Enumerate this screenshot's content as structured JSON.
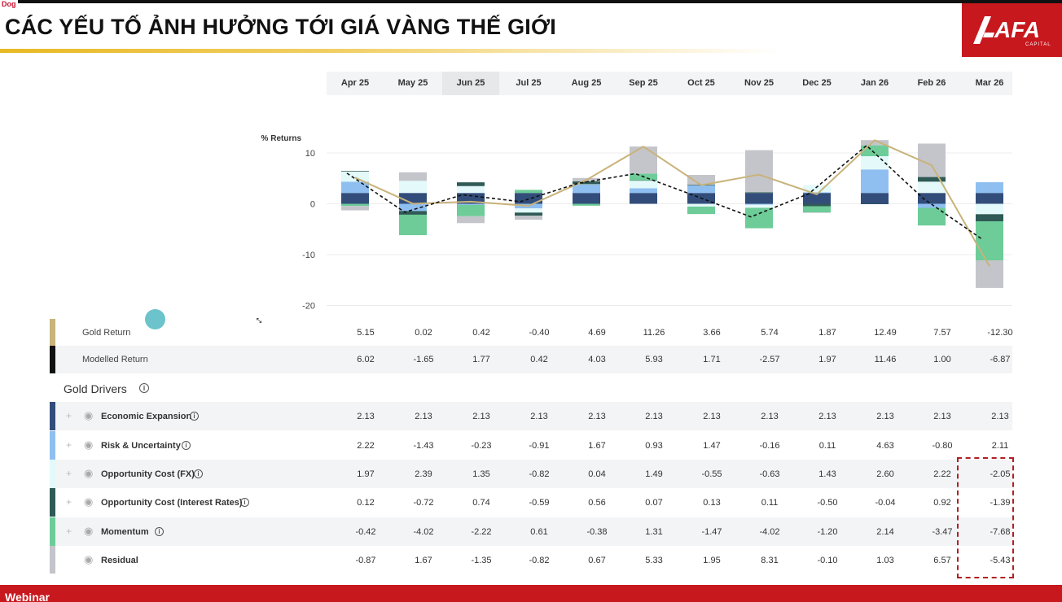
{
  "corner_tag": "Dog",
  "title": "CÁC YẾU TỐ ẢNH HƯỞNG TỚI GIÁ VÀNG THẾ GIỚI",
  "logo": {
    "text": "AFA",
    "sub": "CAPITAL"
  },
  "footer": "Webinar",
  "gold_drivers_heading": "Gold Drivers",
  "colors": {
    "economic_expansion": "#324d7a",
    "risk_uncertainty": "#8fbff0",
    "opportunity_cost_fx": "#e3f9fa",
    "opportunity_cost_rates": "#2f5a55",
    "momentum": "#6dcc98",
    "residual": "#c4c5cb",
    "gold_return": "#c8b37a",
    "modelled_return": "#111111",
    "brand_red": "#c7181d",
    "highlight": "#b21f24"
  },
  "chart_data": {
    "type": "bar",
    "stacked": true,
    "ylabel": "% Returns",
    "ylim": [
      -20,
      15
    ],
    "yticks": [
      10,
      0,
      -10,
      -20
    ],
    "categories": [
      "Apr 25",
      "May 25",
      "Jun 25",
      "Jul 25",
      "Aug 25",
      "Sep 25",
      "Oct 25",
      "Nov 25",
      "Dec 25",
      "Jan 26",
      "Feb 26",
      "Mar 26"
    ],
    "series": [
      {
        "name": "Economic Expansion",
        "values": [
          2.13,
          2.13,
          2.13,
          2.13,
          2.13,
          2.13,
          2.13,
          2.13,
          2.13,
          2.13,
          2.13,
          2.13
        ]
      },
      {
        "name": "Risk & Uncertainty",
        "values": [
          2.22,
          -1.43,
          -0.23,
          -0.91,
          1.67,
          0.93,
          1.47,
          -0.16,
          0.11,
          4.63,
          -0.8,
          2.11
        ]
      },
      {
        "name": "Opportunity Cost (FX)",
        "values": [
          1.97,
          2.39,
          1.35,
          -0.82,
          0.04,
          1.49,
          -0.55,
          -0.63,
          1.43,
          2.6,
          2.22,
          -2.05
        ]
      },
      {
        "name": "Opportunity Cost (Interest Rates)",
        "values": [
          0.12,
          -0.72,
          0.74,
          -0.59,
          0.56,
          0.07,
          0.13,
          0.11,
          -0.5,
          -0.04,
          0.92,
          -1.39
        ]
      },
      {
        "name": "Momentum",
        "values": [
          -0.42,
          -4.02,
          -2.22,
          0.61,
          -0.38,
          1.31,
          -1.47,
          -4.02,
          -1.2,
          2.14,
          -3.47,
          -7.68
        ]
      },
      {
        "name": "Residual",
        "values": [
          -0.87,
          1.67,
          -1.35,
          -0.82,
          0.67,
          5.33,
          1.95,
          8.31,
          -0.1,
          1.03,
          6.57,
          -5.43
        ]
      }
    ],
    "lines": [
      {
        "name": "Gold Return",
        "values": [
          5.15,
          0.02,
          0.42,
          -0.4,
          4.69,
          11.26,
          3.66,
          5.74,
          1.87,
          12.49,
          7.57,
          -12.3
        ]
      },
      {
        "name": "Modelled Return",
        "values": [
          6.02,
          -1.65,
          1.77,
          0.42,
          4.03,
          5.93,
          1.71,
          -2.57,
          1.97,
          11.46,
          1.0,
          -6.87
        ]
      }
    ]
  },
  "table": {
    "return_rows": [
      {
        "label": "Gold Return",
        "values": [
          "5.15",
          "0.02",
          "0.42",
          "-0.40",
          "4.69",
          "11.26",
          "3.66",
          "5.74",
          "1.87",
          "12.49",
          "7.57",
          "-12.30"
        ]
      },
      {
        "label": "Modelled Return",
        "values": [
          "6.02",
          "-1.65",
          "1.77",
          "0.42",
          "4.03",
          "5.93",
          "1.71",
          "-2.57",
          "1.97",
          "11.46",
          "1.00",
          "-6.87"
        ]
      }
    ],
    "driver_rows": [
      {
        "label": "Economic Expansion",
        "values": [
          "2.13",
          "2.13",
          "2.13",
          "2.13",
          "2.13",
          "2.13",
          "2.13",
          "2.13",
          "2.13",
          "2.13",
          "2.13",
          "2.13"
        ]
      },
      {
        "label": "Risk & Uncertainty",
        "values": [
          "2.22",
          "-1.43",
          "-0.23",
          "-0.91",
          "1.67",
          "0.93",
          "1.47",
          "-0.16",
          "0.11",
          "4.63",
          "-0.80",
          "2.11"
        ]
      },
      {
        "label": "Opportunity Cost (FX)",
        "values": [
          "1.97",
          "2.39",
          "1.35",
          "-0.82",
          "0.04",
          "1.49",
          "-0.55",
          "-0.63",
          "1.43",
          "2.60",
          "2.22",
          "-2.05"
        ]
      },
      {
        "label": "Opportunity Cost (Interest Rates)",
        "values": [
          "0.12",
          "-0.72",
          "0.74",
          "-0.59",
          "0.56",
          "0.07",
          "0.13",
          "0.11",
          "-0.50",
          "-0.04",
          "0.92",
          "-1.39"
        ]
      },
      {
        "label": "Momentum",
        "values": [
          "-0.42",
          "-4.02",
          "-2.22",
          "0.61",
          "-0.38",
          "1.31",
          "-1.47",
          "-4.02",
          "-1.20",
          "2.14",
          "-3.47",
          "-7.68"
        ]
      },
      {
        "label": "Residual",
        "values": [
          "-0.87",
          "1.67",
          "-1.35",
          "-0.82",
          "0.67",
          "5.33",
          "1.95",
          "8.31",
          "-0.10",
          "1.03",
          "6.57",
          "-5.43"
        ]
      }
    ]
  }
}
